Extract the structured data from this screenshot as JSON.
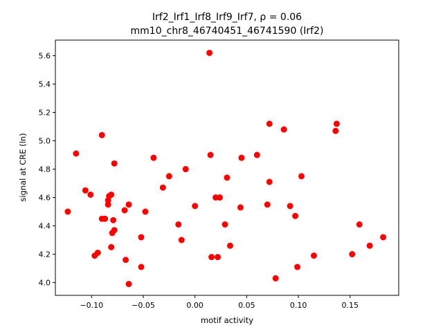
{
  "chart_data": {
    "type": "scatter",
    "title_line1": "Irf2_Irf1_Irf8_Irf9_Irf7, ρ = 0.06",
    "title_line2": "mm10_chr8_46740451_46741590 (Irf2)",
    "xlabel": "motif activity",
    "ylabel": "signal at CRE (ln)",
    "xlim": [
      -0.135,
      0.197
    ],
    "ylim": [
      3.91,
      5.71
    ],
    "xticks": [
      -0.1,
      -0.05,
      0.0,
      0.05,
      0.1,
      0.15
    ],
    "xtick_labels": [
      "−0.10",
      "−0.05",
      "0.00",
      "0.05",
      "0.10",
      "0.15"
    ],
    "yticks": [
      4.0,
      4.2,
      4.4,
      4.6,
      4.8,
      5.0,
      5.2,
      5.4,
      5.6
    ],
    "ytick_labels": [
      "4.0",
      "4.2",
      "4.4",
      "4.6",
      "4.8",
      "5.0",
      "5.2",
      "5.4",
      "5.6"
    ],
    "grid": false,
    "marker_color": "#ff0000",
    "points": [
      {
        "x": 0.014,
        "y": 5.62
      },
      {
        "x": -0.115,
        "y": 4.91
      },
      {
        "x": -0.09,
        "y": 5.04
      },
      {
        "x": -0.123,
        "y": 4.5
      },
      {
        "x": -0.106,
        "y": 4.65
      },
      {
        "x": -0.101,
        "y": 4.62
      },
      {
        "x": -0.097,
        "y": 4.19
      },
      {
        "x": -0.094,
        "y": 4.21
      },
      {
        "x": -0.09,
        "y": 4.45
      },
      {
        "x": -0.087,
        "y": 4.45
      },
      {
        "x": -0.084,
        "y": 4.58
      },
      {
        "x": -0.084,
        "y": 4.55
      },
      {
        "x": -0.083,
        "y": 4.61
      },
      {
        "x": -0.081,
        "y": 4.62
      },
      {
        "x": -0.081,
        "y": 4.25
      },
      {
        "x": -0.08,
        "y": 4.35
      },
      {
        "x": -0.079,
        "y": 4.44
      },
      {
        "x": -0.078,
        "y": 4.37
      },
      {
        "x": -0.078,
        "y": 4.84
      },
      {
        "x": -0.068,
        "y": 4.51
      },
      {
        "x": -0.067,
        "y": 4.16
      },
      {
        "x": -0.064,
        "y": 4.55
      },
      {
        "x": -0.064,
        "y": 3.99
      },
      {
        "x": -0.052,
        "y": 4.32
      },
      {
        "x": -0.052,
        "y": 4.11
      },
      {
        "x": -0.048,
        "y": 4.5
      },
      {
        "x": -0.04,
        "y": 4.88
      },
      {
        "x": -0.031,
        "y": 4.67
      },
      {
        "x": -0.025,
        "y": 4.75
      },
      {
        "x": -0.016,
        "y": 4.41
      },
      {
        "x": -0.013,
        "y": 4.3
      },
      {
        "x": -0.009,
        "y": 4.8
      },
      {
        "x": 0.0,
        "y": 4.54
      },
      {
        "x": 0.015,
        "y": 4.9
      },
      {
        "x": 0.016,
        "y": 4.18
      },
      {
        "x": 0.02,
        "y": 4.6
      },
      {
        "x": 0.022,
        "y": 4.18
      },
      {
        "x": 0.024,
        "y": 4.6
      },
      {
        "x": 0.029,
        "y": 4.41
      },
      {
        "x": 0.031,
        "y": 4.74
      },
      {
        "x": 0.034,
        "y": 4.26
      },
      {
        "x": 0.044,
        "y": 4.53
      },
      {
        "x": 0.045,
        "y": 4.88
      },
      {
        "x": 0.06,
        "y": 4.9
      },
      {
        "x": 0.07,
        "y": 4.55
      },
      {
        "x": 0.072,
        "y": 4.71
      },
      {
        "x": 0.072,
        "y": 5.12
      },
      {
        "x": 0.078,
        "y": 4.03
      },
      {
        "x": 0.086,
        "y": 5.08
      },
      {
        "x": 0.092,
        "y": 4.54
      },
      {
        "x": 0.097,
        "y": 4.47
      },
      {
        "x": 0.099,
        "y": 4.11
      },
      {
        "x": 0.103,
        "y": 4.75
      },
      {
        "x": 0.115,
        "y": 4.19
      },
      {
        "x": 0.136,
        "y": 5.07
      },
      {
        "x": 0.137,
        "y": 5.12
      },
      {
        "x": 0.152,
        "y": 4.2
      },
      {
        "x": 0.159,
        "y": 4.41
      },
      {
        "x": 0.169,
        "y": 4.26
      },
      {
        "x": 0.182,
        "y": 4.32
      }
    ]
  }
}
